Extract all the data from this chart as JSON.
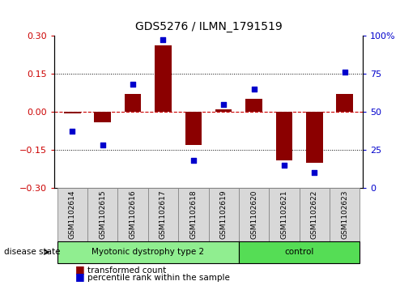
{
  "title": "GDS5276 / ILMN_1791519",
  "samples": [
    "GSM1102614",
    "GSM1102615",
    "GSM1102616",
    "GSM1102617",
    "GSM1102618",
    "GSM1102619",
    "GSM1102620",
    "GSM1102621",
    "GSM1102622",
    "GSM1102623"
  ],
  "transformed_count": [
    -0.005,
    -0.04,
    0.07,
    0.26,
    -0.13,
    0.01,
    0.05,
    -0.19,
    -0.2,
    0.07
  ],
  "percentile_rank": [
    37,
    28,
    68,
    97,
    18,
    55,
    65,
    15,
    10,
    76
  ],
  "groups": [
    {
      "label": "Myotonic dystrophy type 2",
      "start": 0,
      "end": 6,
      "color": "#90EE90"
    },
    {
      "label": "control",
      "start": 6,
      "end": 10,
      "color": "#55DD55"
    }
  ],
  "ylim_left": [
    -0.3,
    0.3
  ],
  "ylim_right": [
    0,
    100
  ],
  "yticks_left": [
    -0.3,
    -0.15,
    0.0,
    0.15,
    0.3
  ],
  "yticks_right": [
    0,
    25,
    50,
    75,
    100
  ],
  "bar_color": "#8B0000",
  "dot_color": "#0000CC",
  "hline_color": "#CC0000",
  "bg_color": "#FFFFFF",
  "plot_bg_color": "#FFFFFF",
  "disease_state_label": "disease state",
  "legend_bar_label": "transformed count",
  "legend_dot_label": "percentile rank within the sample",
  "label_color_left": "#CC0000",
  "label_color_right": "#0000CC",
  "tick_box_color": "#D8D8D8",
  "tick_box_edge": "#888888"
}
